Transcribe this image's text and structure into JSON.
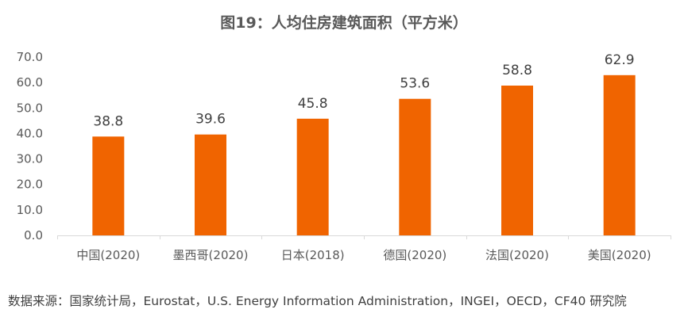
{
  "chart_data": {
    "type": "bar",
    "title": "图19：人均住房建筑面积（平方米）",
    "xlabel": "",
    "ylabel": "",
    "categories": [
      "中国(2020)",
      "墨西哥(2020)",
      "日本(2018)",
      "德国(2020)",
      "法国(2020)",
      "美国(2020)"
    ],
    "values": [
      38.8,
      39.6,
      45.8,
      53.6,
      58.8,
      62.9
    ],
    "data_labels": [
      "38.8",
      "39.6",
      "45.8",
      "53.6",
      "58.8",
      "62.9"
    ],
    "ylim": [
      0,
      70
    ],
    "yticks": [
      "0.0",
      "10.0",
      "20.0",
      "30.0",
      "40.0",
      "50.0",
      "60.0",
      "70.0"
    ],
    "grid": false,
    "legend": "none",
    "bar_color": "#F06400"
  },
  "source": "数据来源：国家统计局，Eurostat，U.S. Energy Information Administration，INGEI，OECD，CF40 研究院"
}
